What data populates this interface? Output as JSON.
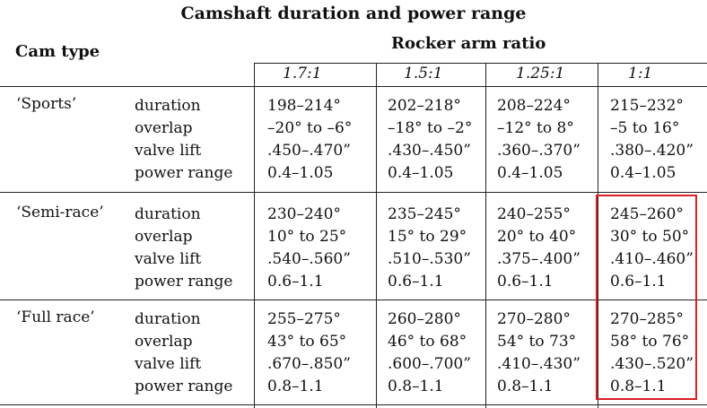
{
  "title": "Camshaft duration and power range",
  "header": {
    "cam_type": "Cam type",
    "rocker_arm_ratio": "Rocker arm ratio",
    "ratios": [
      "1.7:1",
      "1.5:1",
      "1.25:1",
      "1:1"
    ]
  },
  "param_labels": [
    "duration",
    "overlap",
    "valve lift",
    "power range"
  ],
  "rows": [
    {
      "cam": "‘Sports’",
      "values": [
        [
          "198–214°",
          "–20° to –6°",
          ".450–.470”",
          "0.4–1.05"
        ],
        [
          "202–218°",
          "–18° to –2°",
          ".430–.450”",
          "0.4–1.05"
        ],
        [
          "208–224°",
          "–12° to 8°",
          ".360–.370”",
          "0.4–1.05"
        ],
        [
          "215–232°",
          "–5 to 16°",
          ".380–.420”",
          "0.4–1.05"
        ]
      ]
    },
    {
      "cam": "‘Semi-race’",
      "values": [
        [
          "230–240°",
          "10° to 25°",
          ".540–.560”",
          "0.6–1.1"
        ],
        [
          "235–245°",
          "15° to 29°",
          ".510–.530”",
          "0.6–1.1"
        ],
        [
          "240–255°",
          "20° to 40°",
          ".375–.400”",
          "0.6–1.1"
        ],
        [
          "245–260°",
          "30° to 50°",
          ".410–.460”",
          "0.6–1.1"
        ]
      ]
    },
    {
      "cam": "‘Full race’",
      "values": [
        [
          "255–275°",
          "43° to 65°",
          ".670–.850”",
          "0.8–1.1"
        ],
        [
          "260–280°",
          "46° to 68°",
          ".600–.700”",
          "0.8–1.1"
        ],
        [
          "270–280°",
          "54° to 73°",
          ".410–.430”",
          "0.8–1.1"
        ],
        [
          "270–285°",
          "58° to 76°",
          ".430–.520”",
          "0.8–1.1"
        ]
      ]
    }
  ],
  "highlight_color": "#d81f26"
}
